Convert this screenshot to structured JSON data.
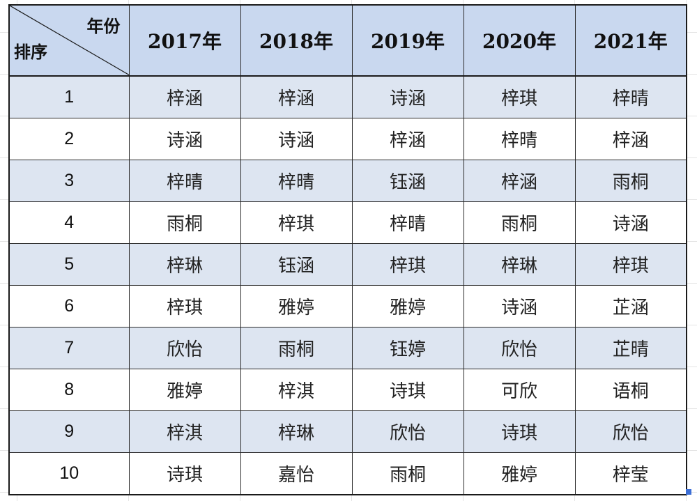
{
  "header": {
    "corner_top": "年份",
    "corner_bottom": "排序",
    "years": [
      "2017年",
      "2018年",
      "2019年",
      "2020年",
      "2021年"
    ]
  },
  "rows": [
    {
      "rank": "1",
      "names": [
        "梓涵",
        "梓涵",
        "诗涵",
        "梓琪",
        "梓晴"
      ]
    },
    {
      "rank": "2",
      "names": [
        "诗涵",
        "诗涵",
        "梓涵",
        "梓晴",
        "梓涵"
      ]
    },
    {
      "rank": "3",
      "names": [
        "梓晴",
        "梓晴",
        "钰涵",
        "梓涵",
        "雨桐"
      ]
    },
    {
      "rank": "4",
      "names": [
        "雨桐",
        "梓琪",
        "梓晴",
        "雨桐",
        "诗涵"
      ]
    },
    {
      "rank": "5",
      "names": [
        "梓琳",
        "钰涵",
        "梓琪",
        "梓琳",
        "梓琪"
      ]
    },
    {
      "rank": "6",
      "names": [
        "梓琪",
        "雅婷",
        "雅婷",
        "诗涵",
        "芷涵"
      ]
    },
    {
      "rank": "7",
      "names": [
        "欣怡",
        "雨桐",
        "钰婷",
        "欣怡",
        "芷晴"
      ]
    },
    {
      "rank": "8",
      "names": [
        "雅婷",
        "梓淇",
        "诗琪",
        "可欣",
        "语桐"
      ]
    },
    {
      "rank": "9",
      "names": [
        "梓淇",
        "梓琳",
        "欣怡",
        "诗琪",
        "欣怡"
      ]
    },
    {
      "rank": "10",
      "names": [
        "诗琪",
        "嘉怡",
        "雨桐",
        "雅婷",
        "梓莹"
      ]
    }
  ],
  "colors": {
    "header_bg": "#c9d8ef",
    "band_bg": "#dde5f1",
    "selection_handle": "#3d6fd6"
  }
}
